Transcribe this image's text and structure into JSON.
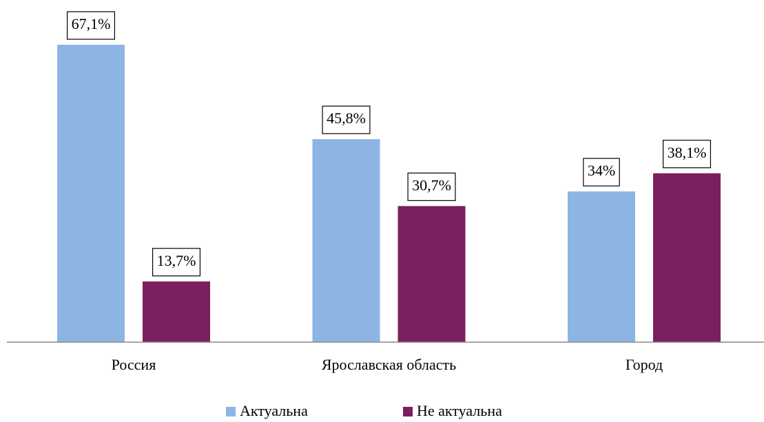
{
  "chart_data": {
    "type": "bar",
    "categories": [
      "Россия",
      "Ярославская область",
      "Город"
    ],
    "series": [
      {
        "name": "Актуальна",
        "color": "#8eb4e3",
        "values": [
          67.1,
          45.8,
          34
        ],
        "value_labels": [
          "67,1%",
          "45,8%",
          "34%"
        ]
      },
      {
        "name": "Не актуальна",
        "color": "#7b1f5e",
        "values": [
          13.7,
          30.7,
          38.1
        ],
        "value_labels": [
          "13,7%",
          "30,7%",
          "38,1%"
        ]
      }
    ],
    "legend": "bottom"
  }
}
